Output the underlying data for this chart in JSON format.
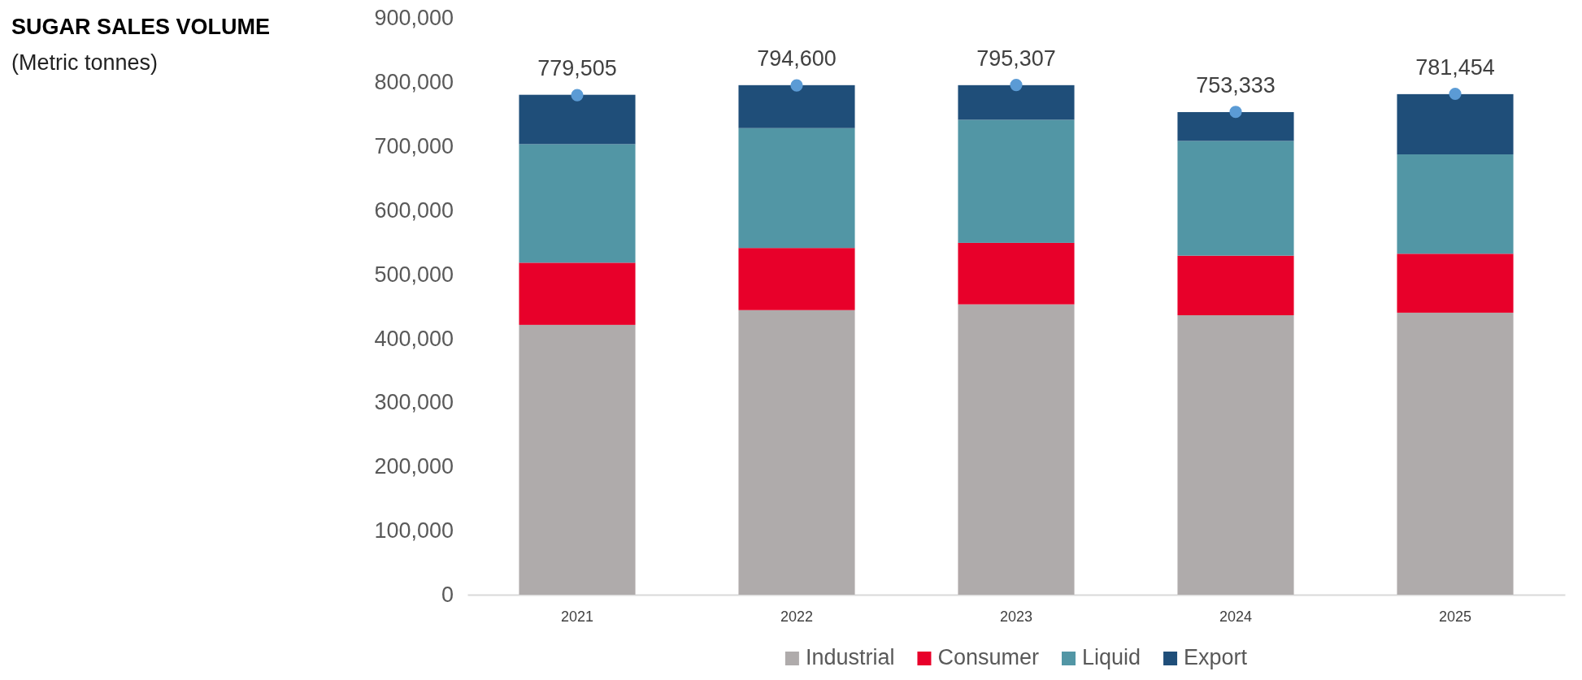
{
  "chart_data": {
    "type": "bar",
    "title": "SUGAR SALES VOLUME",
    "subtitle": "(Metric tonnes)",
    "stacked": true,
    "categories": [
      "2021",
      "2022",
      "2023",
      "2024",
      "2025"
    ],
    "series": [
      {
        "name": "Industrial",
        "color": "#afabab",
        "values": [
          421000,
          444000,
          453000,
          436000,
          440000
        ]
      },
      {
        "name": "Consumer",
        "color": "#e8002a",
        "values": [
          97000,
          97000,
          96000,
          93000,
          92000
        ]
      },
      {
        "name": "Liquid",
        "color": "#5296a5",
        "values": [
          185000,
          187000,
          192000,
          179000,
          155000
        ]
      },
      {
        "name": "Export",
        "color": "#1f4e79",
        "values": [
          77000,
          67000,
          54000,
          45000,
          94000
        ]
      },
      {
        "type": "scatter",
        "color": "#5b9bd5",
        "values": [
          779505,
          794600,
          795307,
          753333,
          781454
        ],
        "value_labels": [
          "779,505",
          "794,600",
          "795,307",
          "753,333",
          "781,454"
        ]
      }
    ],
    "ylim": [
      0,
      900000
    ],
    "yticks": [
      {
        "value": 0,
        "label": "0"
      },
      {
        "value": 100000,
        "label": "100,000"
      },
      {
        "value": 200000,
        "label": "200,000"
      },
      {
        "value": 300000,
        "label": "300,000"
      },
      {
        "value": 400000,
        "label": "400,000"
      },
      {
        "value": 500000,
        "label": "500,000"
      },
      {
        "value": 600000,
        "label": "600,000"
      },
      {
        "value": 700000,
        "label": "700,000"
      },
      {
        "value": 800000,
        "label": "800,000"
      },
      {
        "value": 900000,
        "label": "900,000"
      }
    ],
    "grid": false,
    "legend": "bottom",
    "marker": "circle"
  }
}
